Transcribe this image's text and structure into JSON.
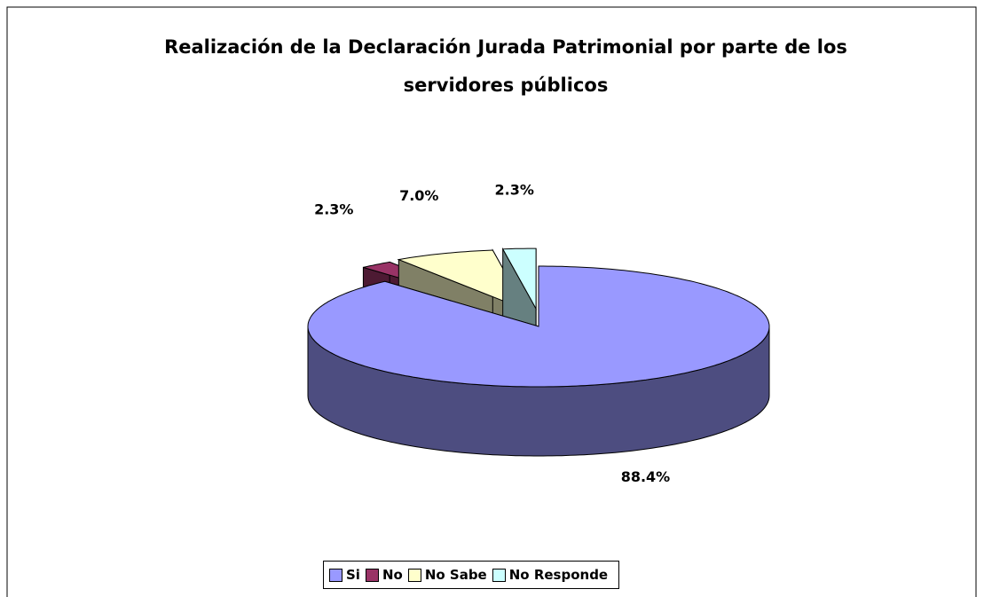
{
  "chart_data": {
    "type": "pie",
    "title": "Realización de la Declaración Jurada Patrimonial por parte de los servidores públicos",
    "categories": [
      "Si",
      "No",
      "No Sabe",
      "No Responde"
    ],
    "values": [
      88.4,
      2.3,
      7.0,
      2.3
    ],
    "value_labels": [
      "88.4%",
      "2.3%",
      "7.0%",
      "2.3%"
    ],
    "colors": [
      "#9999ff",
      "#993366",
      "#ffffcc",
      "#ccffff"
    ],
    "legend": "bottom"
  }
}
